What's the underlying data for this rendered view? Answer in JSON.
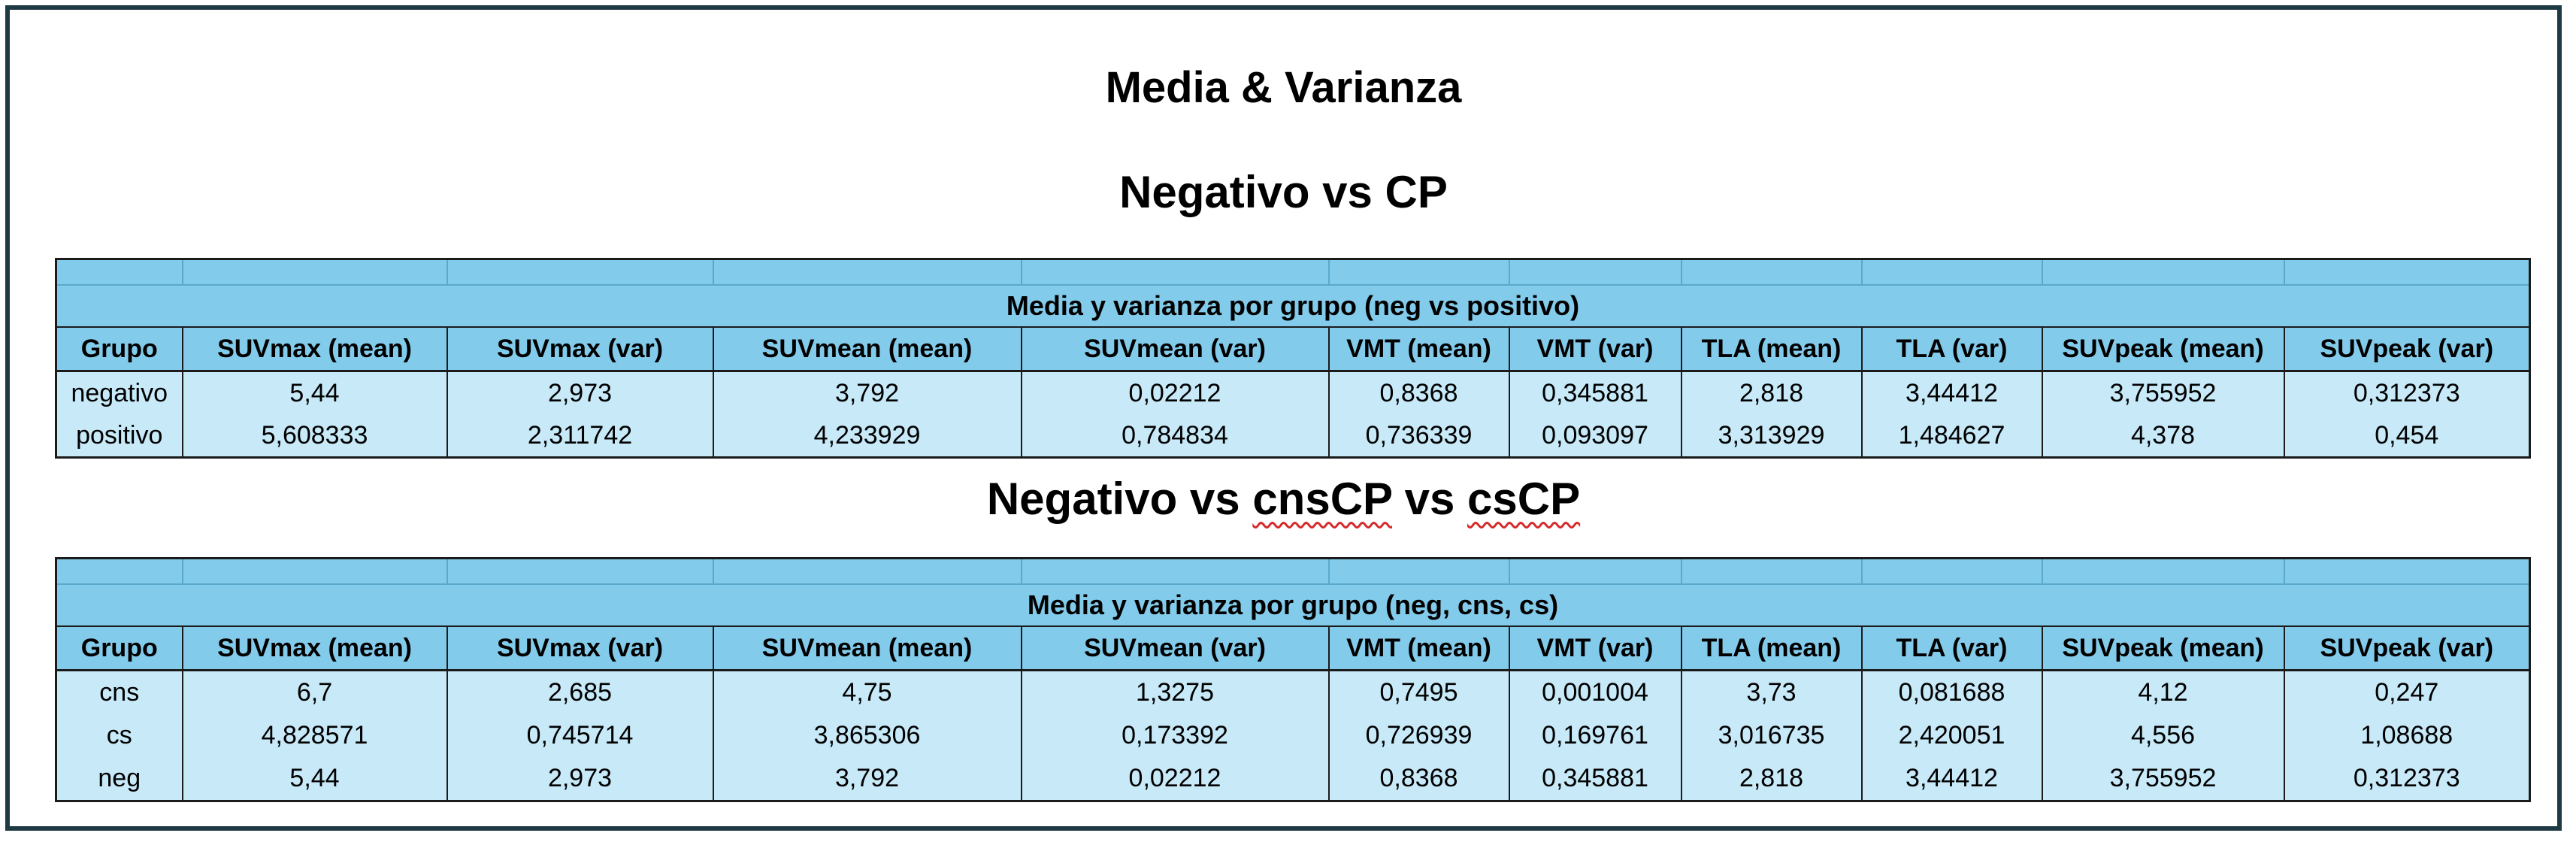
{
  "title": "Media & Varianza",
  "section1": {
    "heading": "Negativo vs CP",
    "table_caption": "Media y varianza por grupo (neg vs positivo)",
    "columns": [
      "Grupo",
      "SUVmax (mean)",
      "SUVmax (var)",
      "SUVmean (mean)",
      "SUVmean (var)",
      "VMT (mean)",
      "VMT (var)",
      "TLA (mean)",
      "TLA (var)",
      "SUVpeak (mean)",
      "SUVpeak (var)"
    ],
    "rows": [
      [
        "negativo",
        "5,44",
        "2,973",
        "3,792",
        "0,02212",
        "0,8368",
        "0,345881",
        "2,818",
        "3,44412",
        "3,755952",
        "0,312373"
      ],
      [
        "positivo",
        "5,608333",
        "2,311742",
        "4,233929",
        "0,784834",
        "0,736339",
        "0,093097",
        "3,313929",
        "1,484627",
        "4,378",
        "0,454"
      ]
    ]
  },
  "section2": {
    "heading_prefix": "Negativo vs ",
    "heading_word1": "cnsCP",
    "heading_mid": " vs ",
    "heading_word2": "csCP",
    "table_caption": "Media y varianza por grupo (neg, cns, cs)",
    "columns": [
      "Grupo",
      "SUVmax (mean)",
      "SUVmax (var)",
      "SUVmean (mean)",
      "SUVmean (var)",
      "VMT (mean)",
      "VMT (var)",
      "TLA (mean)",
      "TLA (var)",
      "SUVpeak (mean)",
      "SUVpeak (var)"
    ],
    "rows": [
      [
        "cns",
        "6,7",
        "2,685",
        "4,75",
        "1,3275",
        "0,7495",
        "0,001004",
        "3,73",
        "0,081688",
        "4,12",
        "0,247"
      ],
      [
        "cs",
        "4,828571",
        "0,745714",
        "3,865306",
        "0,173392",
        "0,726939",
        "0,169761",
        "3,016735",
        "2,420051",
        "4,556",
        "1,08688"
      ],
      [
        "neg",
        "5,44",
        "2,973",
        "3,792",
        "0,02212",
        "0,8368",
        "0,345881",
        "2,818",
        "3,44412",
        "3,755952",
        "0,312373"
      ]
    ]
  }
}
